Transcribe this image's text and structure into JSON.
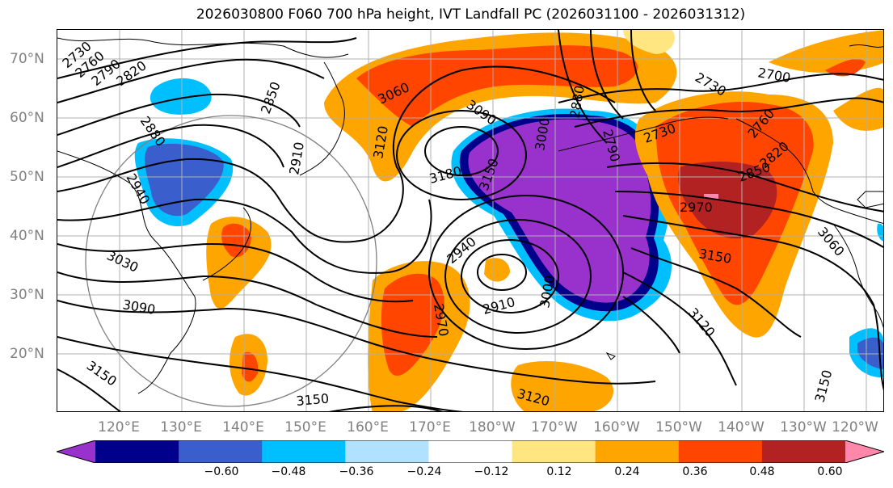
{
  "title": "2026030800 F060 700 hPa height, IVT Landfall PC (2026031100 - 2026031312)",
  "lat_labels": [
    "70°N",
    "60°N",
    "50°N",
    "40°N",
    "30°N",
    "20°N"
  ],
  "lon_labels": [
    "120°E",
    "130°E",
    "140°E",
    "150°E",
    "160°E",
    "170°E",
    "180°W",
    "170°W",
    "160°W",
    "150°W",
    "140°W",
    "130°W",
    "120°W"
  ],
  "contour_labels": [
    "2730",
    "2760",
    "2790",
    "2820",
    "2850",
    "2880",
    "2910",
    "2940",
    "3030",
    "3090",
    "3150",
    "3060",
    "3120",
    "3090",
    "3180",
    "3150",
    "3000",
    "2880",
    "2790",
    "2700",
    "2730",
    "2760",
    "2730",
    "2820",
    "2850",
    "2970",
    "3060",
    "3150",
    "3120",
    "3120",
    "2940",
    "2970",
    "2910",
    "3000",
    "3150",
    "3150"
  ],
  "colorbar": {
    "ticks": [
      "−0.60",
      "−0.48",
      "−0.36",
      "−0.24",
      "−0.12",
      "0.12",
      "0.24",
      "0.36",
      "0.48",
      "0.60"
    ],
    "colors": [
      "#9932cc",
      "#00008b",
      "#3a5fcd",
      "#00bfff",
      "#b0e2ff",
      "#ffffff",
      "#ffe680",
      "#ffa500",
      "#ff4500",
      "#b22222",
      "#ff88aa"
    ]
  }
}
